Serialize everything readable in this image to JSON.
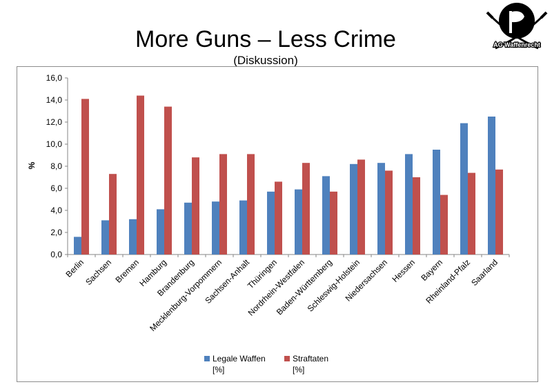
{
  "header": {
    "title": "More Guns – Less Crime",
    "subtitle": "(Diskussion)"
  },
  "logo": {
    "text": "AG Waffenrecht",
    "icon": "pirate-flag-crossed-swords"
  },
  "colors": {
    "series1": "#4f81bd",
    "series2": "#c0504d",
    "axis": "#868686",
    "frame": "#8c8c8c"
  },
  "chart_data": {
    "type": "bar",
    "title": "",
    "ylabel": "%",
    "xlabel": "",
    "ylim": [
      0,
      16
    ],
    "ytick_step": 2,
    "ytick_labels": [
      "0,0",
      "2,0",
      "4,0",
      "6,0",
      "8,0",
      "10,0",
      "12,0",
      "14,0",
      "16,0"
    ],
    "grid": false,
    "legend_position": "bottom",
    "categories": [
      "Berlin",
      "Sachsen",
      "Bremen",
      "Hamburg",
      "Brandenburg",
      "Mecklenburg-Vorpommern",
      "Sachsen-Anhalt",
      "Thüringen",
      "Nordrhein-Westfalen",
      "Baden-Württemberg",
      "Schleswig-Holstein",
      "Niedersachsen",
      "Hessen",
      "Bayern",
      "Rheinland-Pfalz",
      "Saarland"
    ],
    "series": [
      {
        "name": "Legale Waffen [%]",
        "name_line1": "Legale Waffen",
        "name_line2": "[%]",
        "values": [
          1.6,
          3.1,
          3.2,
          4.1,
          4.7,
          4.8,
          4.9,
          5.7,
          5.9,
          7.1,
          8.2,
          8.3,
          9.1,
          9.5,
          11.9,
          12.5
        ]
      },
      {
        "name": "Straftaten [%]",
        "name_line1": "Straftaten",
        "name_line2": "[%]",
        "values": [
          14.1,
          7.3,
          14.4,
          13.4,
          8.8,
          9.1,
          9.1,
          6.6,
          8.3,
          5.7,
          8.6,
          7.6,
          7.0,
          5.4,
          7.4,
          7.7
        ]
      }
    ]
  }
}
